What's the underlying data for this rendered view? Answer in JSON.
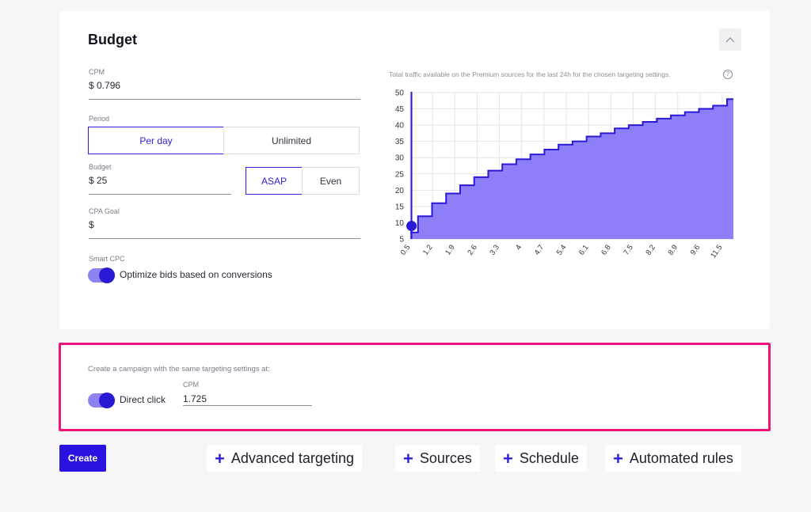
{
  "budget": {
    "title": "Budget",
    "cpm_label": "CPM",
    "cpm_value": "$ 0.796",
    "period_label": "Period",
    "period_options": [
      "Per day",
      "Unlimited"
    ],
    "period_selected": "Per day",
    "budget_label": "Budget",
    "budget_value": "$ 25",
    "pacing_options": [
      "ASAP",
      "Even"
    ],
    "pacing_selected": "ASAP",
    "cpa_label": "CPA Goal",
    "cpa_value": "$",
    "smart_cpc_label": "Smart CPC",
    "smart_cpc_toggle_label": "Optimize bids based on conversions",
    "smart_cpc_enabled": true
  },
  "chart_caption": "Total traffic available on the Premium sources for the last 24h for the chosen targeting settings.",
  "chart_data": {
    "type": "area",
    "title": "",
    "xlabel": "",
    "ylabel": "",
    "ylim": [
      5,
      50
    ],
    "yticks": [
      5,
      10,
      15,
      20,
      25,
      30,
      35,
      40,
      45,
      50
    ],
    "xtick_labels": [
      "0.5",
      "1.2",
      "1.9",
      "2.6",
      "3.3",
      "4",
      "4.7",
      "5.4",
      "6.1",
      "6.8",
      "7.5",
      "8.2",
      "8.9",
      "9.6",
      "11.5"
    ],
    "x": [
      0.5,
      1.0,
      1.5,
      2.0,
      2.5,
      3.0,
      3.5,
      4.0,
      4.5,
      5.0,
      5.5,
      6.0,
      6.5,
      7.0,
      7.5,
      8.0,
      8.5,
      9.0,
      9.5,
      10.0,
      10.5,
      11.0,
      11.5,
      12.0
    ],
    "values": [
      7,
      12,
      16,
      19,
      21.5,
      24,
      26,
      28,
      29.5,
      31,
      32.5,
      34,
      35,
      36.5,
      37.5,
      39,
      40,
      41,
      42,
      43,
      44,
      45,
      46,
      48
    ],
    "marker": {
      "x": 0.6,
      "y": 9
    },
    "grid": true,
    "fill_color": "#8d7ff8",
    "line_color": "#2a1ad6"
  },
  "promo": {
    "caption": "Create a campaign with the same targeting settings at:",
    "toggle_label": "Direct click",
    "toggle_enabled": true,
    "cpm_label": "CPM",
    "cpm_value": "1.725"
  },
  "actions": {
    "create_label": "Create",
    "add_buttons": [
      "Advanced targeting",
      "Sources",
      "Schedule",
      "Automated rules"
    ]
  },
  "colors": {
    "accent": "#2a12e0",
    "highlight_border": "#f0127c"
  }
}
